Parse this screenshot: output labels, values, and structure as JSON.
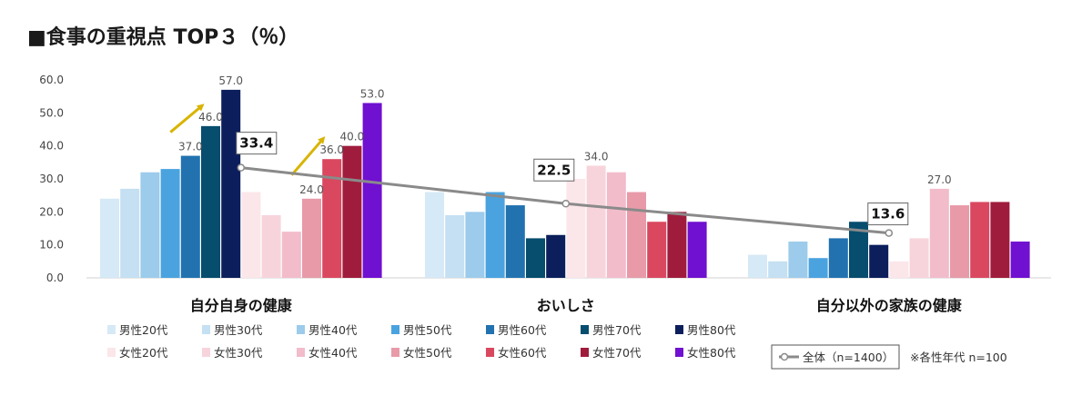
{
  "chart_data": {
    "type": "bar",
    "title": "■食事の重視点 TOP３（％）",
    "categories": [
      "自分自身の健康",
      "おいしさ",
      "自分以外の家族の健康"
    ],
    "ylim": [
      0,
      60
    ],
    "yticks": [
      "0.0",
      "10.0",
      "20.0",
      "30.0",
      "40.0",
      "50.0",
      "60.0"
    ],
    "grid": false,
    "series": [
      {
        "name": "男性20代",
        "color": "#d6e9f6",
        "values": [
          24,
          26,
          7
        ]
      },
      {
        "name": "男性30代",
        "color": "#c4e0f2",
        "values": [
          27,
          19,
          5
        ]
      },
      {
        "name": "男性40代",
        "color": "#9ccbeb",
        "values": [
          32,
          20,
          11
        ]
      },
      {
        "name": "男性50代",
        "color": "#4aa3df",
        "values": [
          33,
          26,
          6
        ]
      },
      {
        "name": "男性60代",
        "color": "#2272b0",
        "values": [
          37,
          22,
          12
        ]
      },
      {
        "name": "男性70代",
        "color": "#064d6e",
        "values": [
          46,
          12,
          17
        ]
      },
      {
        "name": "男性80代",
        "color": "#0c1f5c",
        "values": [
          57,
          13,
          10
        ]
      },
      {
        "name": "女性20代",
        "color": "#fbe6ea",
        "values": [
          26,
          30,
          5
        ]
      },
      {
        "name": "女性30代",
        "color": "#f7d4dc",
        "values": [
          19,
          34,
          12
        ]
      },
      {
        "name": "女性40代",
        "color": "#f2bccb",
        "values": [
          14,
          32,
          27
        ]
      },
      {
        "name": "女性50代",
        "color": "#e89aa8",
        "values": [
          24,
          26,
          22
        ]
      },
      {
        "name": "女性60代",
        "color": "#d9485f",
        "values": [
          36,
          17,
          23
        ]
      },
      {
        "name": "女性70代",
        "color": "#a01c3c",
        "values": [
          40,
          20,
          23
        ]
      },
      {
        "name": "女性80代",
        "color": "#7010d0",
        "values": [
          53,
          17,
          11
        ]
      }
    ],
    "data_labels": [
      {
        "series": 4,
        "category": 0,
        "text": "37.0"
      },
      {
        "series": 5,
        "category": 0,
        "text": "46.0"
      },
      {
        "series": 6,
        "category": 0,
        "text": "57.0"
      },
      {
        "series": 10,
        "category": 0,
        "text": "24.0"
      },
      {
        "series": 11,
        "category": 0,
        "text": "36.0"
      },
      {
        "series": 12,
        "category": 0,
        "text": "40.0"
      },
      {
        "series": 13,
        "category": 0,
        "text": "53.0"
      },
      {
        "series": 8,
        "category": 1,
        "text": "34.0"
      },
      {
        "series": 9,
        "category": 2,
        "text": "27.0"
      }
    ],
    "overall": {
      "name": "全体（n=1400）",
      "color": "#8a8a8a",
      "values": [
        33.4,
        22.5,
        13.6
      ],
      "labels": [
        "33.4",
        "22.5",
        "13.6"
      ]
    },
    "arrow_color": "#d8b400",
    "note": "※各性年代 n=100"
  }
}
